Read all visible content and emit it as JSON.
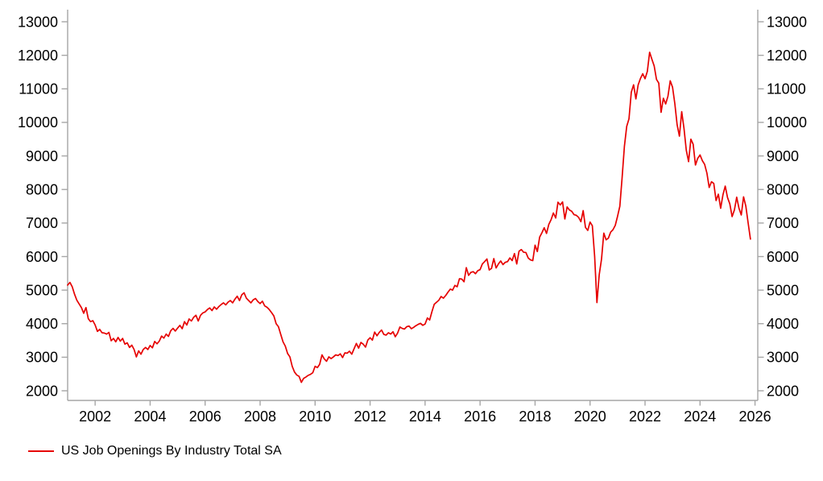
{
  "chart": {
    "background": "#ffffff",
    "axis_color": "#a6a6a6",
    "text_color": "#000000"
  },
  "chart_data": {
    "type": "line",
    "title": "",
    "legend": {
      "position": "bottom-left",
      "label": "US Job Openings By Industry Total SA"
    },
    "grid": false,
    "axes": {
      "left_y": true,
      "right_y": true,
      "bottom_x": true,
      "top_x": false
    },
    "x_domain": [
      2001.0,
      2026.1
    ],
    "y_domain": [
      2000,
      13000
    ],
    "x_ticks": [
      2002,
      2004,
      2006,
      2008,
      2010,
      2012,
      2014,
      2016,
      2018,
      2020,
      2022,
      2024,
      2026
    ],
    "y_ticks": [
      2000,
      3000,
      4000,
      5000,
      6000,
      7000,
      8000,
      9000,
      10000,
      11000,
      12000,
      13000
    ],
    "x_start_year": 2001.0,
    "x_step_years": 0.0833333,
    "units": "thousands of job openings, monthly, seasonally adjusted",
    "series": [
      {
        "name": "US Job Openings By Industry Total SA",
        "color": "#e60000",
        "values": [
          5150,
          5230,
          5100,
          4880,
          4700,
          4590,
          4480,
          4310,
          4480,
          4150,
          4060,
          4090,
          3960,
          3770,
          3830,
          3730,
          3720,
          3690,
          3740,
          3490,
          3560,
          3460,
          3590,
          3480,
          3560,
          3390,
          3430,
          3290,
          3360,
          3230,
          3010,
          3190,
          3090,
          3230,
          3290,
          3230,
          3350,
          3280,
          3470,
          3400,
          3480,
          3630,
          3570,
          3690,
          3620,
          3790,
          3860,
          3780,
          3870,
          3950,
          3850,
          4060,
          3960,
          4140,
          4080,
          4190,
          4250,
          4080,
          4250,
          4320,
          4350,
          4420,
          4470,
          4390,
          4500,
          4430,
          4510,
          4570,
          4620,
          4560,
          4640,
          4690,
          4620,
          4730,
          4820,
          4690,
          4860,
          4920,
          4760,
          4690,
          4620,
          4710,
          4750,
          4660,
          4600,
          4670,
          4530,
          4490,
          4420,
          4330,
          4230,
          4000,
          3910,
          3680,
          3460,
          3330,
          3110,
          3010,
          2730,
          2560,
          2470,
          2430,
          2250,
          2370,
          2410,
          2460,
          2490,
          2540,
          2730,
          2690,
          2790,
          3070,
          2950,
          2880,
          3010,
          2960,
          3010,
          3070,
          3050,
          3100,
          2990,
          3130,
          3120,
          3180,
          3090,
          3250,
          3410,
          3270,
          3440,
          3390,
          3300,
          3510,
          3580,
          3510,
          3750,
          3640,
          3740,
          3810,
          3680,
          3660,
          3730,
          3690,
          3760,
          3610,
          3720,
          3900,
          3860,
          3840,
          3910,
          3930,
          3850,
          3890,
          3940,
          3980,
          4010,
          3950,
          3990,
          4170,
          4110,
          4360,
          4580,
          4640,
          4700,
          4810,
          4760,
          4840,
          4940,
          5030,
          5000,
          5140,
          5100,
          5340,
          5330,
          5250,
          5670,
          5440,
          5530,
          5550,
          5490,
          5580,
          5610,
          5780,
          5850,
          5930,
          5600,
          5650,
          5940,
          5660,
          5780,
          5870,
          5760,
          5830,
          5850,
          5960,
          5880,
          6090,
          5780,
          6160,
          6210,
          6130,
          6120,
          5960,
          5900,
          5880,
          6340,
          6150,
          6580,
          6710,
          6860,
          6690,
          6960,
          7100,
          7300,
          7150,
          7620,
          7540,
          7630,
          7120,
          7480,
          7390,
          7350,
          7250,
          7230,
          7170,
          7040,
          7370,
          6870,
          6780,
          7030,
          6920,
          6010,
          4630,
          5460,
          5920,
          6700,
          6500,
          6550,
          6730,
          6800,
          6930,
          7200,
          7500,
          8360,
          9290,
          9880,
          10110,
          10900,
          11120,
          10700,
          11120,
          11310,
          11450,
          11300,
          11520,
          12090,
          11880,
          11680,
          11280,
          11170,
          10300,
          10720,
          10550,
          10780,
          11240,
          11050,
          10560,
          9930,
          9590,
          10320,
          9820,
          9170,
          8830,
          9500,
          9350,
          8730,
          8930,
          9030,
          8860,
          8750,
          8490,
          8060,
          8230,
          8180,
          7670,
          7860,
          7440,
          7840,
          8100,
          7760,
          7570,
          7190,
          7390,
          7770,
          7440,
          7240,
          7780,
          7500,
          7000,
          6520
        ]
      }
    ]
  }
}
